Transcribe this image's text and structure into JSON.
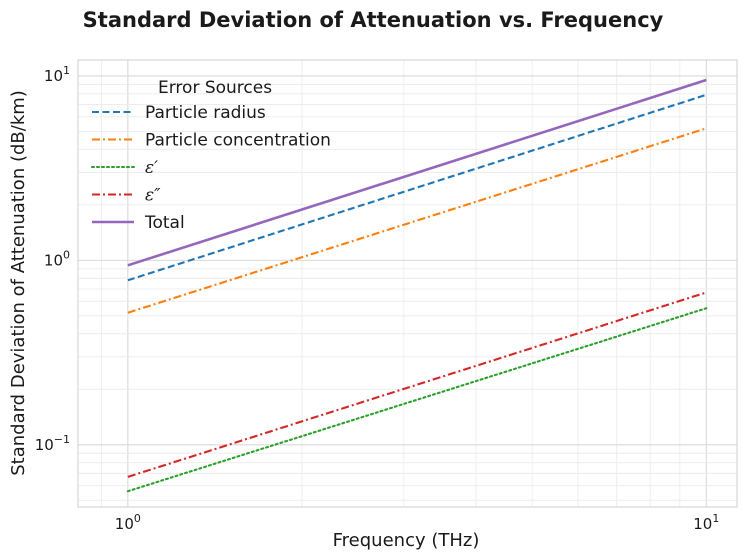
{
  "chart_data": {
    "type": "line",
    "title": "Standard Deviation of Attenuation vs. Frequency",
    "xlabel": "Frequency (THz)",
    "ylabel": "Standard Deviation of Attenuation (dB/km)",
    "xscale": "log",
    "yscale": "log",
    "xlim": [
      0.82,
      11.3
    ],
    "ylim": [
      0.046,
      12.2
    ],
    "grid": true,
    "x_ticks": [
      {
        "value": 1,
        "base": "10",
        "exp": "0"
      },
      {
        "value": 10,
        "base": "10",
        "exp": "1"
      }
    ],
    "y_ticks": [
      {
        "value": 0.1,
        "base": "10",
        "exp": "−1"
      },
      {
        "value": 1,
        "base": "10",
        "exp": "0"
      },
      {
        "value": 10,
        "base": "10",
        "exp": "1"
      }
    ],
    "legend": {
      "title": "Error Sources",
      "position": "top-left"
    },
    "series": [
      {
        "name": "Particle radius",
        "color": "#1f77b4",
        "dash": "dashed",
        "x": [
          1,
          10
        ],
        "y": [
          0.78,
          7.9
        ]
      },
      {
        "name": "Particle concentration",
        "color": "#ff7f0e",
        "dash": "dashdot",
        "x": [
          1,
          10
        ],
        "y": [
          0.52,
          5.2
        ]
      },
      {
        "name": "ε′",
        "italic": true,
        "color": "#2ca02c",
        "dash": "dotted",
        "x": [
          1,
          10
        ],
        "y": [
          0.056,
          0.55
        ]
      },
      {
        "name": "ε″",
        "italic": true,
        "color": "#d62728",
        "dash": "dashdot",
        "x": [
          1,
          10
        ],
        "y": [
          0.067,
          0.67
        ]
      },
      {
        "name": "Total",
        "color": "#9467bd",
        "dash": "solid",
        "x": [
          1,
          10
        ],
        "y": [
          0.94,
          9.5
        ]
      }
    ]
  }
}
